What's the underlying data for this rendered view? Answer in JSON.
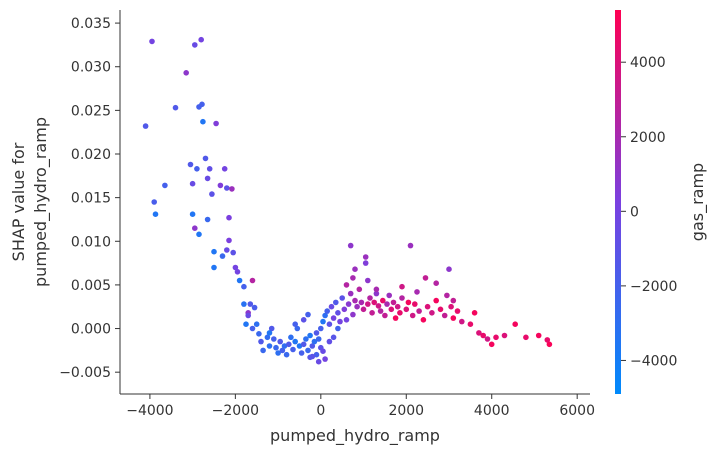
{
  "chart_data": {
    "type": "scatter",
    "title": "",
    "xlabel": "pumped_hydro_ramp",
    "ylabel_line1": "SHAP value for",
    "ylabel_line2": "pumped_hydro_ramp",
    "xlim": [
      -4700,
      6300
    ],
    "ylim": [
      -0.0075,
      0.0365
    ],
    "x_ticks": [
      -4000,
      -2000,
      0,
      2000,
      4000,
      6000
    ],
    "x_tick_labels": [
      "−4000",
      "−2000",
      "0",
      "2000",
      "4000",
      "6000"
    ],
    "y_ticks": [
      -0.005,
      0.0,
      0.005,
      0.01,
      0.015,
      0.02,
      0.025,
      0.03,
      0.035
    ],
    "y_tick_labels": [
      "−0.005",
      "0.000",
      "0.005",
      "0.010",
      "0.015",
      "0.020",
      "0.025",
      "0.030",
      "0.035"
    ],
    "grid": false,
    "colorbar": {
      "label": "gas_ramp",
      "range": [
        -4900,
        5400
      ],
      "ticks": [
        -4000,
        -2000,
        0,
        2000,
        4000
      ],
      "tick_labels": [
        "−4000",
        "−2000",
        "0",
        "2000",
        "4000"
      ],
      "colors": [
        "#008afb",
        "#7a40e0",
        "#ff0052"
      ]
    },
    "points": [
      [
        -4100,
        0.0232,
        -1500
      ],
      [
        -3950,
        0.0329,
        0
      ],
      [
        -3900,
        0.0145,
        -1800
      ],
      [
        -3870,
        0.0131,
        -3500
      ],
      [
        -3650,
        0.0164,
        -2000
      ],
      [
        -3400,
        0.0253,
        -1500
      ],
      [
        -3150,
        0.0293,
        1000
      ],
      [
        -3050,
        0.0188,
        -1500
      ],
      [
        -3000,
        0.0166,
        -500
      ],
      [
        -2950,
        0.0325,
        -500
      ],
      [
        -2900,
        0.0183,
        -2000
      ],
      [
        -2800,
        0.0331,
        0
      ],
      [
        -2850,
        0.0254,
        -2000
      ],
      [
        -2780,
        0.0257,
        -2000
      ],
      [
        -2760,
        0.0237,
        -3500
      ],
      [
        -2700,
        0.0195,
        -1500
      ],
      [
        -2650,
        0.0172,
        -500
      ],
      [
        -2600,
        0.0183,
        -800
      ],
      [
        -2550,
        0.0154,
        -1000
      ],
      [
        -2450,
        0.0235,
        500
      ],
      [
        -2350,
        0.0164,
        500
      ],
      [
        -2250,
        0.0183,
        0
      ],
      [
        -2200,
        0.0161,
        -1000
      ],
      [
        -2150,
        0.0127,
        300
      ],
      [
        -2080,
        0.016,
        1500
      ],
      [
        -3000,
        0.0131,
        -3500
      ],
      [
        -2950,
        0.0115,
        1000
      ],
      [
        -2850,
        0.0108,
        -3500
      ],
      [
        -2650,
        0.0125,
        -2500
      ],
      [
        -2500,
        0.0088,
        -3500
      ],
      [
        -2500,
        0.007,
        -3500
      ],
      [
        -2300,
        0.0083,
        -2500
      ],
      [
        -2200,
        0.009,
        -500
      ],
      [
        -2150,
        0.0101,
        300
      ],
      [
        -2050,
        0.0087,
        -1000
      ],
      [
        -2000,
        0.007,
        0
      ],
      [
        -1950,
        0.0065,
        0
      ],
      [
        -1900,
        0.0055,
        -3500
      ],
      [
        -1800,
        0.0028,
        -3200
      ],
      [
        -1700,
        0.0018,
        1000
      ],
      [
        -1600,
        0.0055,
        2500
      ],
      [
        -1650,
        0.0028,
        -1500
      ],
      [
        -1550,
        0.0024,
        -1800
      ],
      [
        -1750,
        0.0005,
        -3500
      ],
      [
        -1600,
        0.0,
        -2000
      ],
      [
        -1500,
        0.0005,
        -3000
      ],
      [
        -1450,
        -0.0006,
        -2500
      ],
      [
        -1400,
        -0.0015,
        -1500
      ],
      [
        -1350,
        -0.0025,
        -2500
      ],
      [
        -1250,
        -0.001,
        -2800
      ],
      [
        -1200,
        -0.002,
        -3000
      ],
      [
        -1150,
        0.0,
        -1500
      ],
      [
        -1100,
        -0.0012,
        -2000
      ],
      [
        -1050,
        -0.0022,
        -2500
      ],
      [
        -1000,
        -0.0028,
        -3000
      ],
      [
        -950,
        -0.0015,
        -1500
      ],
      [
        -900,
        -0.0025,
        -2000
      ],
      [
        -850,
        -0.002,
        -2800
      ],
      [
        -800,
        -0.003,
        -2500
      ],
      [
        -750,
        -0.0018,
        -1500
      ],
      [
        -700,
        -0.001,
        -3000
      ],
      [
        -650,
        -0.0024,
        -2000
      ],
      [
        -600,
        -0.0015,
        -3500
      ],
      [
        -550,
        0.0,
        -2500
      ],
      [
        -500,
        -0.002,
        -3500
      ],
      [
        -450,
        -0.0028,
        -2000
      ],
      [
        -400,
        -0.0018,
        -1500
      ],
      [
        -350,
        -0.0012,
        -3000
      ],
      [
        -300,
        -0.0025,
        -2500
      ],
      [
        -250,
        -0.0008,
        -3500
      ],
      [
        -200,
        -0.002,
        -1500
      ],
      [
        -150,
        -0.0015,
        -3000
      ],
      [
        -100,
        -0.003,
        -2000
      ],
      [
        -50,
        -0.0012,
        -2500
      ],
      [
        0,
        -0.0022,
        -1000
      ],
      [
        50,
        -0.0026,
        -500
      ],
      [
        100,
        -0.0035,
        0
      ],
      [
        -400,
        0.001,
        -1000
      ],
      [
        -300,
        0.0016,
        -2000
      ],
      [
        -200,
        -0.0032,
        -1000
      ],
      [
        -100,
        -0.0005,
        -1500
      ],
      [
        0,
        0.0,
        -2000
      ],
      [
        50,
        0.0008,
        -3500
      ],
      [
        100,
        0.0015,
        -3000
      ],
      [
        150,
        0.002,
        -2000
      ],
      [
        200,
        0.0005,
        -1000
      ],
      [
        250,
        0.0025,
        -500
      ],
      [
        300,
        0.0012,
        0
      ],
      [
        350,
        0.003,
        -1500
      ],
      [
        400,
        0.0018,
        -800
      ],
      [
        450,
        0.0008,
        0
      ],
      [
        500,
        0.0035,
        -1000
      ],
      [
        550,
        0.0022,
        500
      ],
      [
        600,
        0.001,
        0
      ],
      [
        650,
        0.0028,
        800
      ],
      [
        700,
        0.004,
        1500
      ],
      [
        750,
        0.0016,
        1000
      ],
      [
        800,
        0.0032,
        2000
      ],
      [
        850,
        0.0025,
        1500
      ],
      [
        900,
        0.0045,
        2500
      ],
      [
        950,
        0.003,
        2000
      ],
      [
        1000,
        0.0022,
        3000
      ],
      [
        1050,
        0.0082,
        1500
      ],
      [
        1100,
        0.0028,
        3500
      ],
      [
        1150,
        0.0035,
        2500
      ],
      [
        1200,
        0.0018,
        3000
      ],
      [
        1250,
        0.003,
        4000
      ],
      [
        1300,
        0.004,
        1000
      ],
      [
        1350,
        0.0026,
        3500
      ],
      [
        1400,
        0.002,
        2500
      ],
      [
        1450,
        0.0032,
        4500
      ],
      [
        1500,
        0.0015,
        3000
      ],
      [
        1550,
        0.0028,
        2000
      ],
      [
        1600,
        0.0038,
        1500
      ],
      [
        1650,
        0.0022,
        4000
      ],
      [
        1700,
        0.003,
        3000
      ],
      [
        1750,
        0.0012,
        5000
      ],
      [
        1800,
        0.0025,
        3500
      ],
      [
        1850,
        0.0018,
        4500
      ],
      [
        1900,
        0.0035,
        2500
      ],
      [
        2000,
        0.0022,
        4000
      ],
      [
        2050,
        0.003,
        5000
      ],
      [
        2100,
        0.0095,
        1500
      ],
      [
        2150,
        0.0015,
        3500
      ],
      [
        2200,
        0.0028,
        4500
      ],
      [
        2300,
        0.002,
        3000
      ],
      [
        2400,
        0.001,
        5000
      ],
      [
        2500,
        0.0025,
        4000
      ],
      [
        2600,
        0.0018,
        3500
      ],
      [
        2700,
        0.0032,
        5000
      ],
      [
        2800,
        0.0022,
        4500
      ],
      [
        2900,
        0.0015,
        3000
      ],
      [
        3000,
        0.0068,
        1000
      ],
      [
        3050,
        0.0025,
        4000
      ],
      [
        3100,
        0.0012,
        5000
      ],
      [
        3200,
        0.002,
        4500
      ],
      [
        3300,
        0.0008,
        3500
      ],
      [
        3500,
        0.0005,
        4500
      ],
      [
        3600,
        0.0018,
        5000
      ],
      [
        3700,
        -0.0005,
        4000
      ],
      [
        3800,
        -0.0008,
        4500
      ],
      [
        3900,
        -0.0012,
        3500
      ],
      [
        4000,
        -0.0018,
        5000
      ],
      [
        4100,
        -0.001,
        4500
      ],
      [
        4300,
        -0.0008,
        4000
      ],
      [
        4550,
        0.0005,
        5000
      ],
      [
        4800,
        -0.001,
        4500
      ],
      [
        5100,
        -0.0008,
        5000
      ],
      [
        5300,
        -0.0013,
        4500
      ],
      [
        5350,
        -0.0018,
        5200
      ],
      [
        700,
        0.0095,
        1000
      ],
      [
        1050,
        0.0075,
        500
      ],
      [
        800,
        0.0068,
        1500
      ],
      [
        750,
        0.0058,
        2000
      ],
      [
        600,
        0.005,
        2500
      ],
      [
        1100,
        0.0055,
        1000
      ],
      [
        1300,
        0.0045,
        2000
      ],
      [
        2450,
        0.0058,
        3000
      ],
      [
        2700,
        0.0052,
        2500
      ],
      [
        1900,
        0.0048,
        3500
      ],
      [
        2250,
        0.0042,
        2000
      ],
      [
        2950,
        0.0038,
        2500
      ],
      [
        3100,
        0.0032,
        3000
      ],
      [
        -1800,
        0.0048,
        -2000
      ],
      [
        -1700,
        0.0015,
        -500
      ],
      [
        -1200,
        -0.0005,
        -3500
      ],
      [
        -600,
        0.0005,
        -2000
      ],
      [
        200,
        -0.0015,
        -800
      ],
      [
        300,
        -0.001,
        -1200
      ],
      [
        400,
        0.0,
        -2200
      ],
      [
        -50,
        -0.0038,
        -500
      ],
      [
        -250,
        -0.0033,
        -1200
      ]
    ]
  }
}
